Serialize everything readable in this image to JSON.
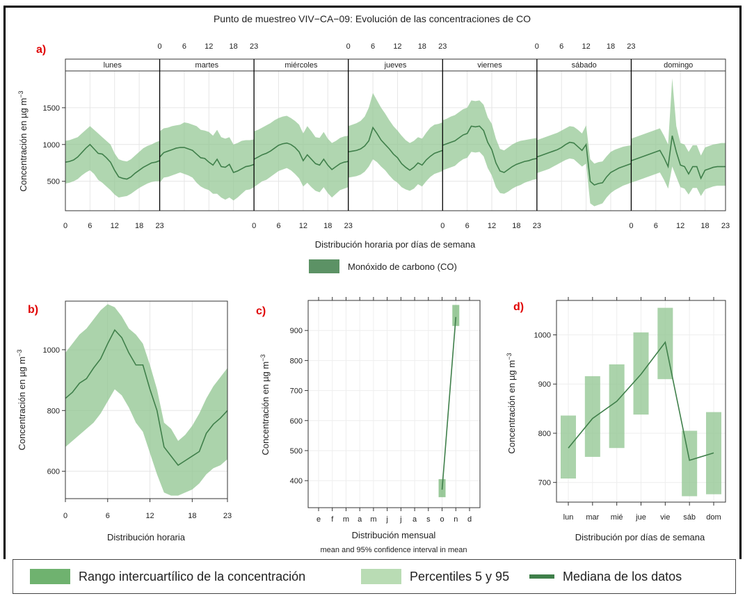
{
  "title": "Punto de muestreo VIV−CA−09: Evolución de las concentraciones de CO",
  "colors": {
    "band": "#8fc48f",
    "iqr": "#6fb26f",
    "line": "#3f7f4a",
    "axis": "#333333"
  },
  "chart_data": [
    {
      "panel": "a)",
      "type": "line",
      "xlabel": "Distribución horaria por días de semana",
      "ylabel": "Concentración en µg m",
      "ylabel_sup": "−3",
      "ylim": [
        100,
        2000
      ],
      "yticks": [
        500,
        1000,
        1500
      ],
      "days": [
        "lunes",
        "martes",
        "miércoles",
        "jueves",
        "viernes",
        "sábado",
        "domingo"
      ],
      "xtick_labels": [
        "0",
        "6",
        "12",
        "18",
        "23"
      ],
      "legend": "Monóxido de carbono (CO)",
      "series": [
        {
          "day": "lunes",
          "median": [
            760,
            770,
            790,
            830,
            890,
            950,
            1000,
            940,
            880,
            870,
            820,
            760,
            650,
            560,
            540,
            530,
            560,
            610,
            650,
            690,
            720,
            750,
            760,
            780
          ],
          "lower": [
            470,
            480,
            500,
            530,
            580,
            620,
            650,
            600,
            520,
            480,
            430,
            380,
            320,
            280,
            290,
            300,
            330,
            370,
            410,
            440,
            470,
            490,
            500,
            500
          ],
          "upper": [
            1050,
            1060,
            1080,
            1100,
            1150,
            1200,
            1250,
            1200,
            1150,
            1100,
            1050,
            1000,
            880,
            800,
            780,
            770,
            800,
            850,
            900,
            950,
            980,
            1000,
            1030,
            1050
          ]
        },
        {
          "day": "martes",
          "median": [
            830,
            890,
            910,
            930,
            950,
            960,
            960,
            940,
            920,
            870,
            820,
            810,
            760,
            720,
            800,
            700,
            690,
            730,
            620,
            640,
            670,
            700,
            710,
            730
          ],
          "lower": [
            480,
            550,
            560,
            580,
            600,
            620,
            600,
            580,
            550,
            480,
            430,
            400,
            380,
            330,
            330,
            280,
            250,
            280,
            240,
            280,
            330,
            380,
            390,
            420
          ],
          "upper": [
            1180,
            1220,
            1230,
            1250,
            1260,
            1270,
            1300,
            1290,
            1270,
            1250,
            1200,
            1190,
            1170,
            1120,
            1200,
            1100,
            1080,
            1100,
            1000,
            1020,
            1050,
            1060,
            1060,
            1070
          ]
        },
        {
          "day": "miércoles",
          "median": [
            800,
            830,
            860,
            880,
            910,
            950,
            990,
            1010,
            1020,
            1000,
            960,
            900,
            780,
            860,
            800,
            740,
            720,
            800,
            720,
            660,
            700,
            740,
            760,
            770
          ],
          "lower": [
            420,
            460,
            500,
            520,
            560,
            600,
            640,
            660,
            680,
            650,
            600,
            540,
            430,
            480,
            420,
            370,
            350,
            420,
            340,
            280,
            330,
            380,
            400,
            420
          ],
          "upper": [
            1180,
            1200,
            1230,
            1260,
            1290,
            1330,
            1360,
            1380,
            1390,
            1360,
            1320,
            1270,
            1150,
            1250,
            1180,
            1100,
            1090,
            1170,
            1080,
            1020,
            1050,
            1090,
            1110,
            1120
          ]
        },
        {
          "day": "jueves",
          "median": [
            900,
            910,
            920,
            940,
            980,
            1050,
            1230,
            1150,
            1060,
            1000,
            940,
            870,
            820,
            740,
            690,
            650,
            690,
            750,
            720,
            790,
            840,
            880,
            900,
            920
          ],
          "lower": [
            550,
            560,
            570,
            590,
            630,
            700,
            800,
            760,
            700,
            650,
            580,
            520,
            480,
            420,
            390,
            370,
            400,
            460,
            430,
            500,
            560,
            600,
            620,
            640
          ],
          "upper": [
            1250,
            1270,
            1290,
            1320,
            1380,
            1500,
            1700,
            1600,
            1500,
            1420,
            1330,
            1250,
            1190,
            1120,
            1060,
            1020,
            1050,
            1100,
            1080,
            1160,
            1230,
            1270,
            1280,
            1300
          ]
        },
        {
          "day": "viernes",
          "median": [
            990,
            1010,
            1030,
            1050,
            1090,
            1130,
            1150,
            1250,
            1240,
            1250,
            1190,
            1030,
            930,
            750,
            640,
            620,
            660,
            700,
            730,
            750,
            770,
            780,
            800,
            810
          ],
          "lower": [
            650,
            670,
            690,
            710,
            760,
            800,
            820,
            900,
            890,
            900,
            840,
            680,
            580,
            420,
            340,
            330,
            360,
            400,
            430,
            450,
            480,
            500,
            520,
            530
          ],
          "upper": [
            1330,
            1350,
            1380,
            1400,
            1440,
            1480,
            1500,
            1600,
            1590,
            1600,
            1540,
            1370,
            1280,
            1080,
            940,
            920,
            960,
            1000,
            1030,
            1050,
            1060,
            1070,
            1080,
            1090
          ]
        },
        {
          "day": "sábado",
          "median": [
            830,
            850,
            870,
            890,
            910,
            930,
            960,
            1000,
            1030,
            1020,
            970,
            920,
            1000,
            500,
            450,
            470,
            480,
            560,
            620,
            650,
            680,
            700,
            720,
            740
          ],
          "lower": [
            610,
            630,
            650,
            670,
            700,
            730,
            760,
            790,
            810,
            800,
            750,
            700,
            740,
            200,
            160,
            180,
            200,
            280,
            340,
            380,
            410,
            440,
            460,
            480
          ],
          "upper": [
            1060,
            1080,
            1100,
            1120,
            1140,
            1160,
            1190,
            1220,
            1250,
            1240,
            1200,
            1150,
            1260,
            800,
            740,
            760,
            770,
            840,
            900,
            930,
            950,
            970,
            980,
            990
          ]
        },
        {
          "day": "domingo",
          "median": [
            780,
            800,
            820,
            840,
            860,
            880,
            900,
            920,
            820,
            700,
            1120,
            900,
            720,
            700,
            600,
            700,
            700,
            540,
            650,
            670,
            690,
            700,
            700,
            700
          ],
          "lower": [
            480,
            500,
            520,
            540,
            560,
            580,
            600,
            620,
            520,
            400,
            700,
            560,
            420,
            400,
            320,
            410,
            410,
            300,
            390,
            410,
            430,
            440,
            440,
            440
          ],
          "upper": [
            1080,
            1100,
            1120,
            1140,
            1160,
            1180,
            1200,
            1220,
            1120,
            1000,
            1900,
            1250,
            1020,
            1000,
            900,
            990,
            990,
            850,
            960,
            980,
            1000,
            1010,
            1020,
            1020
          ]
        }
      ]
    },
    {
      "panel": "b)",
      "type": "line",
      "xlabel": "Distribución horaria",
      "ylabel": "Concentración en µg m",
      "ylabel_sup": "−3",
      "xlim": [
        0,
        23
      ],
      "ylim": [
        510,
        1160
      ],
      "xticks": [
        0,
        6,
        12,
        18,
        23
      ],
      "yticks": [
        600,
        800,
        1000
      ],
      "x": [
        0,
        1,
        2,
        3,
        4,
        5,
        6,
        7,
        8,
        9,
        10,
        11,
        12,
        13,
        14,
        15,
        16,
        17,
        18,
        19,
        20,
        21,
        22,
        23
      ],
      "median": [
        840,
        860,
        890,
        905,
        940,
        970,
        1020,
        1065,
        1040,
        990,
        950,
        950,
        870,
        800,
        680,
        650,
        620,
        635,
        650,
        665,
        725,
        755,
        775,
        800
      ],
      "lower": [
        680,
        700,
        720,
        740,
        760,
        790,
        830,
        870,
        850,
        810,
        760,
        730,
        660,
        590,
        530,
        520,
        520,
        530,
        540,
        560,
        590,
        610,
        620,
        640
      ],
      "upper": [
        990,
        1020,
        1050,
        1070,
        1100,
        1130,
        1150,
        1140,
        1110,
        1070,
        1050,
        1020,
        950,
        870,
        760,
        740,
        700,
        720,
        750,
        790,
        840,
        880,
        910,
        940
      ]
    },
    {
      "panel": "c)",
      "type": "line",
      "xlabel": "Distribución mensual",
      "subtitle": "mean and 95% confidence interval in mean",
      "ylabel": "Concentración en µg m",
      "ylabel_sup": "−3",
      "ylim": [
        310,
        1000
      ],
      "yticks": [
        400,
        500,
        600,
        700,
        800,
        900
      ],
      "categories": [
        "e",
        "f",
        "m",
        "a",
        "m",
        "j",
        "j",
        "a",
        "s",
        "o",
        "n",
        "d"
      ],
      "values": [
        null,
        null,
        null,
        null,
        null,
        null,
        null,
        null,
        null,
        370,
        945,
        null
      ],
      "ci_lower": [
        null,
        null,
        null,
        null,
        null,
        null,
        null,
        null,
        null,
        345,
        915,
        null
      ],
      "ci_upper": [
        null,
        null,
        null,
        null,
        null,
        null,
        null,
        null,
        null,
        405,
        985,
        null
      ]
    },
    {
      "panel": "d)",
      "type": "line",
      "xlabel": "Distribución por días de semana",
      "ylabel": "Concentración en µg m",
      "ylabel_sup": "−3",
      "ylim": [
        660,
        1070
      ],
      "yticks": [
        700,
        800,
        900,
        1000
      ],
      "categories": [
        "lun",
        "mar",
        "mié",
        "jue",
        "vie",
        "sáb",
        "dom"
      ],
      "values": [
        770,
        830,
        865,
        920,
        985,
        745,
        760
      ],
      "box_lower": [
        708,
        752,
        770,
        838,
        910,
        672,
        676
      ],
      "box_upper": [
        836,
        916,
        940,
        1005,
        1055,
        805,
        843
      ]
    }
  ],
  "panel_a_ticks_top": [
    "0",
    "6",
    "12",
    "18",
    "23"
  ],
  "bottom_legend": {
    "iqr": "Rango intercuartílico de la concentración",
    "pct": "Percentiles 5  y 95",
    "median": "Mediana de los datos"
  }
}
